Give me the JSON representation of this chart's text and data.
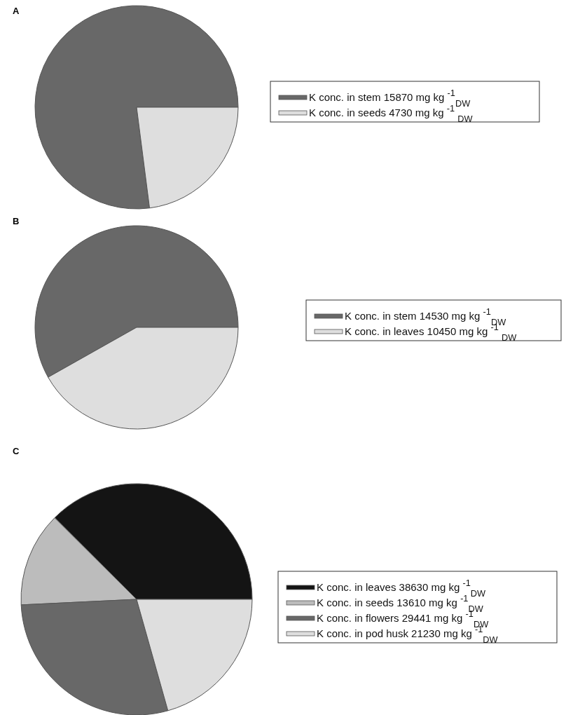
{
  "chart_data": [
    {
      "type": "pie",
      "title": "A",
      "legend": "right",
      "categories": [
        "K conc. in stem 15870 mg kg $^{-1}$$_{DW}$",
        "K conc. in seeds 4730 mg kg $^{-1}$ $_{DW}$"
      ],
      "values": [
        15870,
        4730
      ],
      "colors": [
        "#686868",
        "#dedede"
      ]
    },
    {
      "type": "pie",
      "title": "B",
      "legend": "right",
      "categories": [
        "K conc. in stem 14530 mg kg $^{-1}$$_{DW}$",
        "K conc. in leaves 10450 mg kg $^{-1}$ $_{DW}$"
      ],
      "values": [
        14530,
        10450
      ],
      "colors": [
        "#686868",
        "#dedede"
      ]
    },
    {
      "type": "pie",
      "title": "C",
      "legend": "right",
      "categories": [
        "K conc. in leaves 38630 mg kg $^{-1}$$_{DW}$",
        "K conc. in seeds 13610 mg kg $^{-1}$$_{DW}$",
        "K conc. in flowers 29441 mg kg $^{-1}$$_{DW}$",
        "K conc. in pod husk 21230 mg kg $^{-1}$$_{DW}$"
      ],
      "values": [
        38630,
        13610,
        29441,
        21230
      ],
      "colors": [
        "#141414",
        "#bcbcbc",
        "#686868",
        "#dedede"
      ]
    }
  ]
}
